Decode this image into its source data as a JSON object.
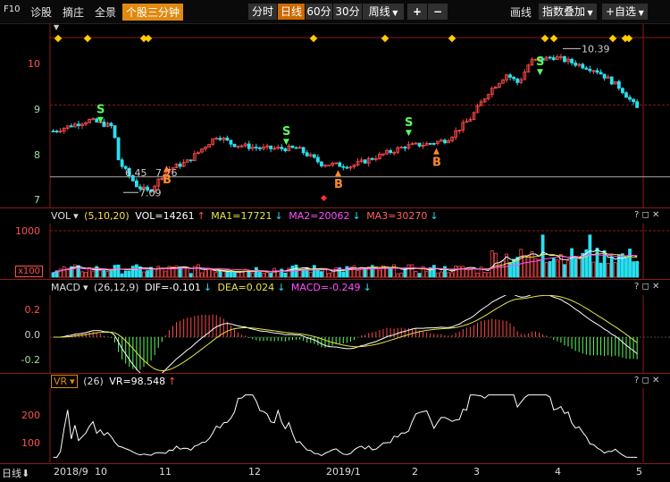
{
  "toolbar": {
    "f10": "F10",
    "items": [
      "分时",
      "诊股",
      "摘庄",
      "全景"
    ],
    "active_tab": "个股三分钟",
    "periods": [
      "分时",
      "日线",
      "60分",
      "30分"
    ],
    "active_period": "日线",
    "week": "周线",
    "draw": "画线",
    "overlay": "指数叠加",
    "watch": "+自选"
  },
  "price_panel": {
    "y_ticks": [
      "10",
      "9",
      "8",
      "7"
    ],
    "high_label": "10.39",
    "low_label": "7.09",
    "min_callout": "7.09",
    "overlay_text": "6.45",
    "overlay_text2": "7.76"
  },
  "vol_panel": {
    "name": "VOL",
    "params": "(5,10,20)",
    "vol": "VOL=14261",
    "ma1": "MA1=17721",
    "ma2": "MA2=20062",
    "ma3": "MA3=30270",
    "y_ticks": [
      "1000"
    ],
    "unit": "x100"
  },
  "macd_panel": {
    "name": "MACD",
    "params": "(26,12,9)",
    "dif": "DIF=-0.101",
    "dea": "DEA=0.024",
    "macd": "MACD=-0.249",
    "y_ticks": [
      "0.2",
      "0.0",
      "-0.2"
    ]
  },
  "vr_panel": {
    "name": "VR",
    "params": "(26)",
    "vr": "VR=98.548",
    "y_ticks": [
      "200",
      "100"
    ]
  },
  "bottom": {
    "period_label": "日线",
    "months": [
      "2018/9",
      "10",
      "11",
      "12",
      "2019/1",
      "2",
      "3",
      "4",
      "5"
    ]
  },
  "colors": {
    "up": "#ff4a4a",
    "down": "#28e0f0",
    "grid": "#8b1a1a",
    "ma1": "#ffffff",
    "ma2": "#e6e640",
    "ma3": "#ff50ff",
    "buy": "#ff8a2a",
    "sell": "#5aff5a",
    "accent": "#e08a12"
  },
  "chart_data": {
    "type": "candlestick",
    "title": "",
    "signals": [
      {
        "label": "S",
        "kind": "sell"
      },
      {
        "label": "B",
        "kind": "buy"
      }
    ],
    "price_range": [
      6.85,
      10.85
    ],
    "high": 10.39,
    "low": 7.09,
    "last_close": 8.9,
    "volume": {
      "vol": 14261,
      "ma1": 17721,
      "ma2": 20062,
      "ma3": 30270,
      "ylim": [
        0,
        1100
      ]
    },
    "macd": {
      "dif": -0.101,
      "dea": 0.024,
      "macd": -0.249,
      "ylim": [
        -0.3,
        0.35
      ]
    },
    "vr": {
      "value": 98.548,
      "ylim": [
        40,
        320
      ]
    }
  }
}
